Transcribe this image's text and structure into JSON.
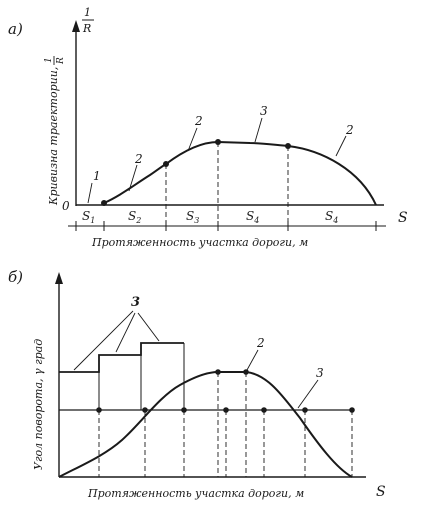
{
  "panel_a": {
    "letter": "а)",
    "y_axis_top_num": "1",
    "y_axis_top_den": "R",
    "y_label_main": "Кривизна траектории,",
    "y_label_frac_num": "1",
    "y_label_frac_den": "R",
    "x_axis_end": "S",
    "origin": "0",
    "x_label": "Протяженность участка дороги, м",
    "segments": [
      "S",
      "S",
      "S",
      "S",
      "S"
    ],
    "segment_subs": [
      "1",
      "2",
      "3",
      "4",
      "4"
    ],
    "callouts": [
      "1",
      "2",
      "2",
      "3",
      "2"
    ]
  },
  "panel_b": {
    "letter": "б)",
    "y_label": "Угол поворота, γ град",
    "x_label": "Протяженность участка дороги, м",
    "x_axis_end": "S",
    "callouts": [
      "3",
      "2",
      "3"
    ]
  }
}
